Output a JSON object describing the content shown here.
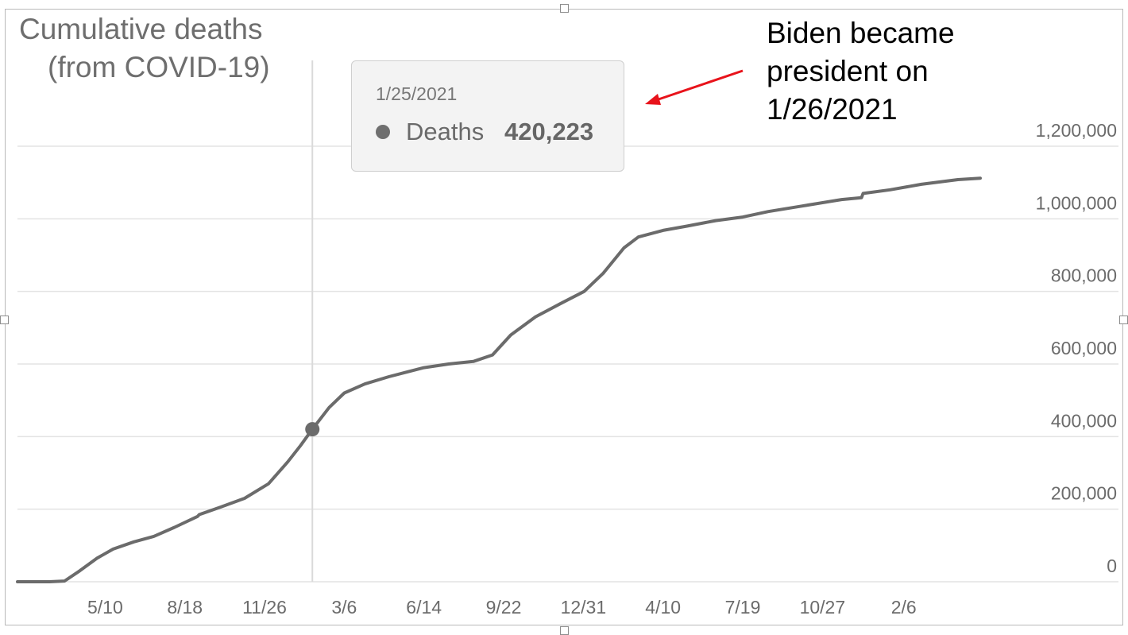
{
  "title": "Cumulative deaths",
  "subtitle": "(from COVID-19)",
  "annotation": {
    "line1": "Biden became",
    "line2": "president on",
    "line3": "1/26/2021",
    "arrow_color": "#e8131b"
  },
  "tooltip": {
    "date": "1/25/2021",
    "series_name": "Deaths",
    "value": "420,223"
  },
  "colors": {
    "line": "#6b6b6b",
    "grid": "#e3e3e3",
    "text": "#6b6b6b",
    "crosshair": "#dadada"
  },
  "chart_data": {
    "type": "line",
    "y_axis_position": "right",
    "grid": true,
    "ylim": [
      0,
      1200000
    ],
    "y_ticks": [
      0,
      200000,
      400000,
      600000,
      800000,
      1000000,
      1200000
    ],
    "y_tick_labels": [
      "0",
      "200,000",
      "400,000",
      "600,000",
      "800,000",
      "1,000,000",
      "1,200,000"
    ],
    "x_range": [
      "2020-01-21",
      "2023-05-13"
    ],
    "x_ticks": [
      "2020-05-10",
      "2020-08-18",
      "2020-11-26",
      "2021-03-06",
      "2021-06-14",
      "2021-09-22",
      "2021-12-31",
      "2022-04-10",
      "2022-07-19",
      "2022-10-27",
      "2023-02-06"
    ],
    "x_tick_labels": [
      "5/10",
      "8/18",
      "11/26",
      "3/6",
      "6/14",
      "9/22",
      "12/31",
      "4/10",
      "7/19",
      "10/27",
      "2/6"
    ],
    "highlight": {
      "x": "2021-01-25",
      "y": 420223
    },
    "series": [
      {
        "values": [
          [
            "2020-01-21",
            0
          ],
          [
            "2020-03-01",
            0
          ],
          [
            "2020-03-20",
            2000
          ],
          [
            "2020-04-08",
            30000
          ],
          [
            "2020-04-30",
            65000
          ],
          [
            "2020-05-20",
            90000
          ],
          [
            "2020-06-15",
            110000
          ],
          [
            "2020-07-10",
            125000
          ],
          [
            "2020-08-05",
            150000
          ],
          [
            "2020-09-03",
            180000
          ],
          [
            "2020-09-05",
            185000
          ],
          [
            "2020-10-01",
            205000
          ],
          [
            "2020-11-01",
            230000
          ],
          [
            "2020-12-01",
            270000
          ],
          [
            "2020-12-25",
            330000
          ],
          [
            "2021-01-10",
            375000
          ],
          [
            "2021-01-25",
            420223
          ],
          [
            "2021-02-15",
            480000
          ],
          [
            "2021-03-06",
            520000
          ],
          [
            "2021-04-01",
            545000
          ],
          [
            "2021-05-01",
            565000
          ],
          [
            "2021-06-14",
            590000
          ],
          [
            "2021-07-15",
            600000
          ],
          [
            "2021-08-15",
            607000
          ],
          [
            "2021-09-08",
            625000
          ],
          [
            "2021-10-01",
            680000
          ],
          [
            "2021-11-01",
            730000
          ],
          [
            "2021-12-01",
            765000
          ],
          [
            "2022-01-01",
            800000
          ],
          [
            "2022-01-25",
            850000
          ],
          [
            "2022-02-20",
            920000
          ],
          [
            "2022-03-10",
            950000
          ],
          [
            "2022-04-10",
            968000
          ],
          [
            "2022-05-10",
            980000
          ],
          [
            "2022-06-15",
            995000
          ],
          [
            "2022-07-19",
            1005000
          ],
          [
            "2022-08-20",
            1020000
          ],
          [
            "2022-10-01",
            1035000
          ],
          [
            "2022-11-20",
            1053000
          ],
          [
            "2022-12-15",
            1058000
          ],
          [
            "2022-12-17",
            1070000
          ],
          [
            "2023-01-20",
            1080000
          ],
          [
            "2023-02-28",
            1095000
          ],
          [
            "2023-04-15",
            1108000
          ],
          [
            "2023-05-13",
            1112000
          ]
        ]
      }
    ]
  }
}
